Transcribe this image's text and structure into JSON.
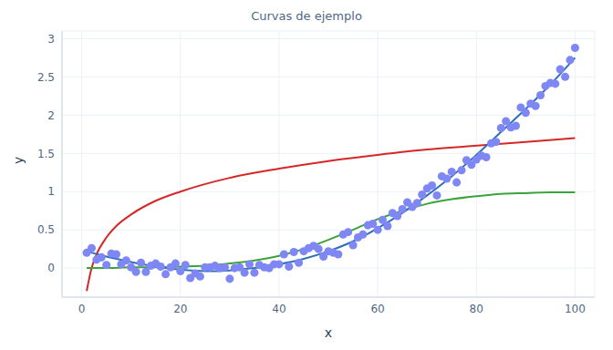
{
  "chart_data": {
    "type": "line",
    "title": "Curvas de ejemplo",
    "x_label": "x",
    "y_label": "y",
    "xlim": [
      -4,
      104
    ],
    "xticks": [
      0,
      20,
      40,
      60,
      80,
      100
    ],
    "ylim": [
      -0.38,
      3.1
    ],
    "yticks": [
      0,
      0.5,
      1,
      1.5,
      2,
      2.5,
      3
    ],
    "grid": true,
    "series": [
      {
        "type": "scatter",
        "color": "#7f87f5",
        "marker": "circle",
        "x": [
          1,
          2,
          3,
          4,
          5,
          6,
          7,
          8,
          9,
          10,
          11,
          12,
          13,
          14,
          15,
          16,
          17,
          18,
          19,
          20,
          21,
          22,
          23,
          24,
          25,
          26,
          27,
          28,
          29,
          30,
          31,
          32,
          33,
          34,
          35,
          36,
          37,
          38,
          39,
          40,
          41,
          42,
          43,
          44,
          45,
          46,
          47,
          48,
          49,
          50,
          51,
          52,
          53,
          54,
          55,
          56,
          57,
          58,
          59,
          60,
          61,
          62,
          63,
          64,
          65,
          66,
          67,
          68,
          69,
          70,
          71,
          72,
          73,
          74,
          75,
          76,
          77,
          78,
          79,
          80,
          81,
          82,
          83,
          84,
          85,
          86,
          87,
          88,
          89,
          90,
          91,
          92,
          93,
          94,
          95,
          96,
          97,
          98,
          99,
          100
        ],
        "values": [
          0.2,
          0.26,
          0.11,
          0.14,
          0.04,
          0.19,
          0.18,
          0.05,
          0.1,
          0.01,
          -0.05,
          0.07,
          -0.05,
          0.03,
          0.06,
          0.02,
          -0.08,
          0.01,
          0.06,
          -0.04,
          0.04,
          -0.13,
          -0.07,
          -0.11,
          0.01,
          0.01,
          0.03,
          0.0,
          0.01,
          -0.14,
          0.0,
          0.01,
          -0.06,
          0.05,
          -0.06,
          0.04,
          0.01,
          0.0,
          0.05,
          0.05,
          0.18,
          0.02,
          0.21,
          0.07,
          0.22,
          0.26,
          0.29,
          0.25,
          0.15,
          0.22,
          0.2,
          0.18,
          0.44,
          0.47,
          0.3,
          0.4,
          0.44,
          0.56,
          0.58,
          0.5,
          0.63,
          0.55,
          0.72,
          0.68,
          0.77,
          0.86,
          0.8,
          0.85,
          0.96,
          1.04,
          1.08,
          0.95,
          1.2,
          1.17,
          1.26,
          1.12,
          1.28,
          1.41,
          1.35,
          1.42,
          1.47,
          1.45,
          1.63,
          1.65,
          1.83,
          1.92,
          1.84,
          1.86,
          2.1,
          2.03,
          2.15,
          2.12,
          2.26,
          2.38,
          2.42,
          2.41,
          2.6,
          2.5,
          2.72,
          2.88
        ]
      },
      {
        "type": "line",
        "color": "#d62728",
        "line_style": "solid",
        "x": [
          1,
          2,
          3,
          5,
          7,
          10,
          15,
          20,
          30,
          40,
          50,
          60,
          70,
          80,
          90,
          100
        ],
        "values": [
          -0.3,
          0.0,
          0.18,
          0.4,
          0.55,
          0.7,
          0.88,
          1.0,
          1.18,
          1.3,
          1.4,
          1.48,
          1.55,
          1.6,
          1.65,
          1.7
        ]
      },
      {
        "type": "line",
        "color": "#3ca33c",
        "line_style": "solid",
        "x": [
          1,
          5,
          10,
          15,
          20,
          25,
          30,
          35,
          40,
          45,
          50,
          55,
          60,
          65,
          70,
          75,
          80,
          85,
          90,
          95,
          100
        ],
        "values": [
          0.0,
          0.0,
          0.01,
          0.01,
          0.02,
          0.03,
          0.06,
          0.1,
          0.16,
          0.25,
          0.37,
          0.5,
          0.64,
          0.75,
          0.84,
          0.9,
          0.94,
          0.97,
          0.98,
          0.99,
          0.99
        ]
      },
      {
        "type": "line",
        "color": "#2f6fb8",
        "line_style": "solid",
        "x": [
          1,
          5,
          10,
          15,
          20,
          25,
          30,
          35,
          40,
          45,
          50,
          55,
          60,
          65,
          70,
          75,
          80,
          85,
          90,
          95,
          100
        ],
        "values": [
          0.22,
          0.15,
          0.08,
          0.02,
          -0.02,
          -0.04,
          -0.03,
          0.0,
          0.05,
          0.12,
          0.22,
          0.35,
          0.52,
          0.72,
          0.95,
          1.2,
          1.48,
          1.78,
          2.08,
          2.4,
          2.75
        ]
      }
    ]
  }
}
